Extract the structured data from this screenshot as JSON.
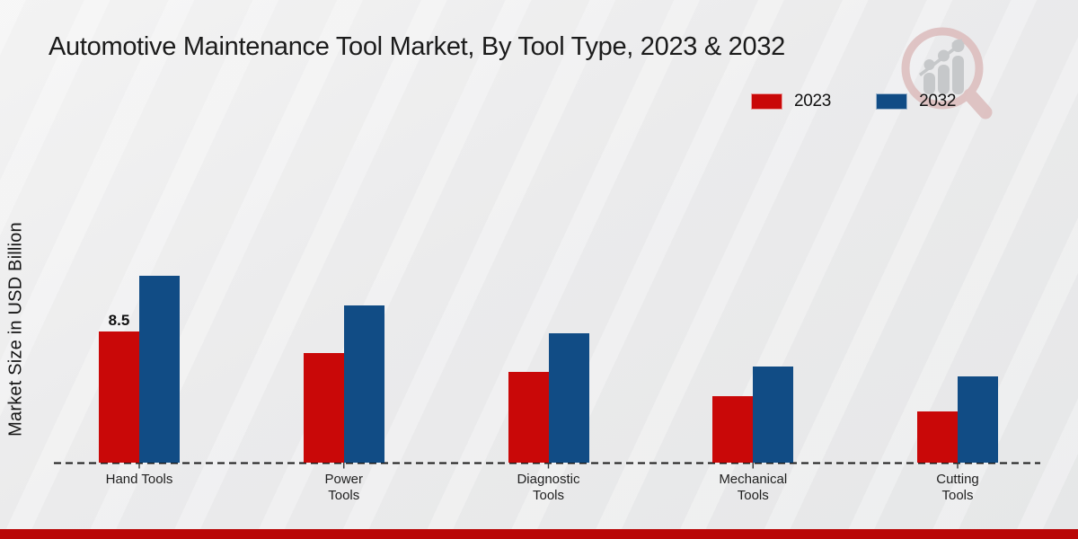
{
  "title": "Automotive Maintenance Tool Market, By Tool Type, 2023 & 2032",
  "ylabel": "Market Size in USD Billion",
  "legend": [
    {
      "label": "2023",
      "color": "#c90808"
    },
    {
      "label": "2032",
      "color": "#114c85"
    }
  ],
  "colors": {
    "series_2023": "#c90808",
    "series_2032": "#114c85",
    "footer_band": "#b90707",
    "baseline": "#1a1a1a",
    "watermark_ring": "#dcbcbc",
    "watermark_bars": "#c6c8ca"
  },
  "watermark": {
    "name": "market-research-magnifier-logo"
  },
  "chart_data": {
    "type": "bar",
    "title": "Automotive Maintenance Tool Market, By Tool Type, 2023 & 2032",
    "xlabel": "",
    "ylabel": "Market Size in USD Billion",
    "categories": [
      "Hand Tools",
      "Power Tools",
      "Diagnostic Tools",
      "Mechanical Tools",
      "Cutting Tools"
    ],
    "category_label_lines": [
      [
        "Hand Tools"
      ],
      [
        "Power",
        "Tools"
      ],
      [
        "Diagnostic",
        "Tools"
      ],
      [
        "Mechanical",
        "Tools"
      ],
      [
        "Cutting",
        "Tools"
      ]
    ],
    "series": [
      {
        "name": "2023",
        "color": "#c90808",
        "values": [
          8.5,
          7.1,
          5.9,
          4.3,
          3.3
        ]
      },
      {
        "name": "2032",
        "color": "#114c85",
        "values": [
          12.1,
          10.2,
          8.4,
          6.2,
          5.6
        ]
      }
    ],
    "data_labels": [
      {
        "series": "2023",
        "category": "Hand Tools",
        "text": "8.5"
      }
    ],
    "ylim": [
      0,
      14
    ],
    "grid": false,
    "axis_line_style": "dashed",
    "legend_position": "top-right"
  }
}
